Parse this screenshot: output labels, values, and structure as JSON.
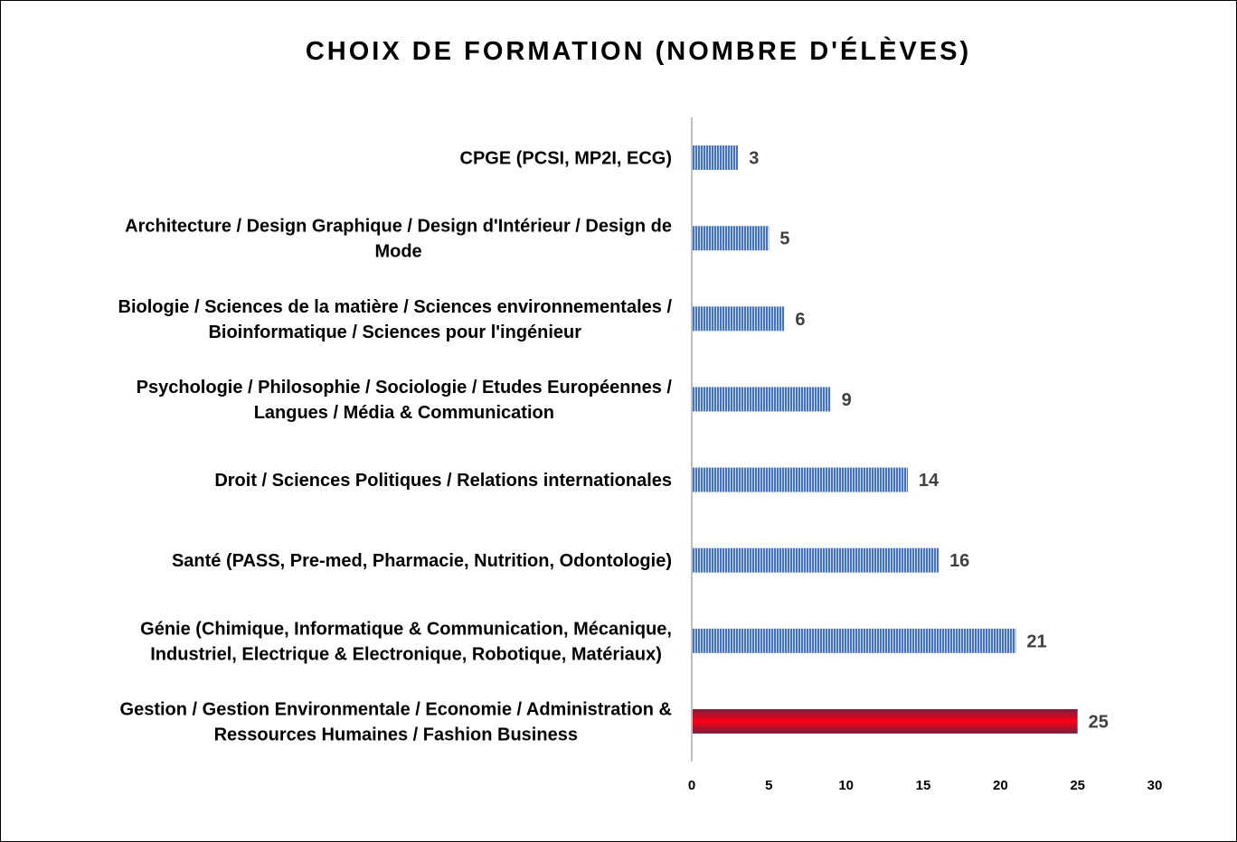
{
  "chart_data": {
    "type": "bar",
    "orientation": "horizontal",
    "title": "CHOIX DE FORMATION (NOMBRE D'ÉLÈVES)",
    "categories": [
      [
        "CPGE (PCSI, MP2I, ECG)"
      ],
      [
        "Architecture / Design Graphique / Design d'Intérieur / Design de",
        "Mode"
      ],
      [
        "Biologie / Sciences de la matière / Sciences environnementales /",
        "Bioinformatique / Sciences pour l'ingénieur"
      ],
      [
        "Psychologie / Philosophie / Sociologie / Etudes Européennes /",
        "Langues / Média & Communication"
      ],
      [
        "Droit / Sciences Politiques / Relations internationales"
      ],
      [
        "Santé (PASS, Pre-med, Pharmacie, Nutrition, Odontologie)"
      ],
      [
        "Génie (Chimique, Informatique & Communication, Mécanique,",
        "Industriel, Electrique & Electronique, Robotique, Matériaux)"
      ],
      [
        "Gestion / Gestion Environmentale / Economie / Administration &",
        "Ressources Humaines / Fashion Business"
      ]
    ],
    "values": [
      3,
      5,
      6,
      9,
      14,
      16,
      21,
      25
    ],
    "highlight_index": 7,
    "xlim": [
      0,
      30
    ],
    "xticks": [
      0,
      5,
      10,
      15,
      20,
      25,
      30
    ],
    "grid": false,
    "data_labels": true,
    "colors": {
      "bar": "#4472c4",
      "bar_stripe": "#ffffff",
      "highlight": "#e8001c",
      "highlight_edge": "#7b1d3a",
      "axis": "#bfbfbf"
    }
  }
}
